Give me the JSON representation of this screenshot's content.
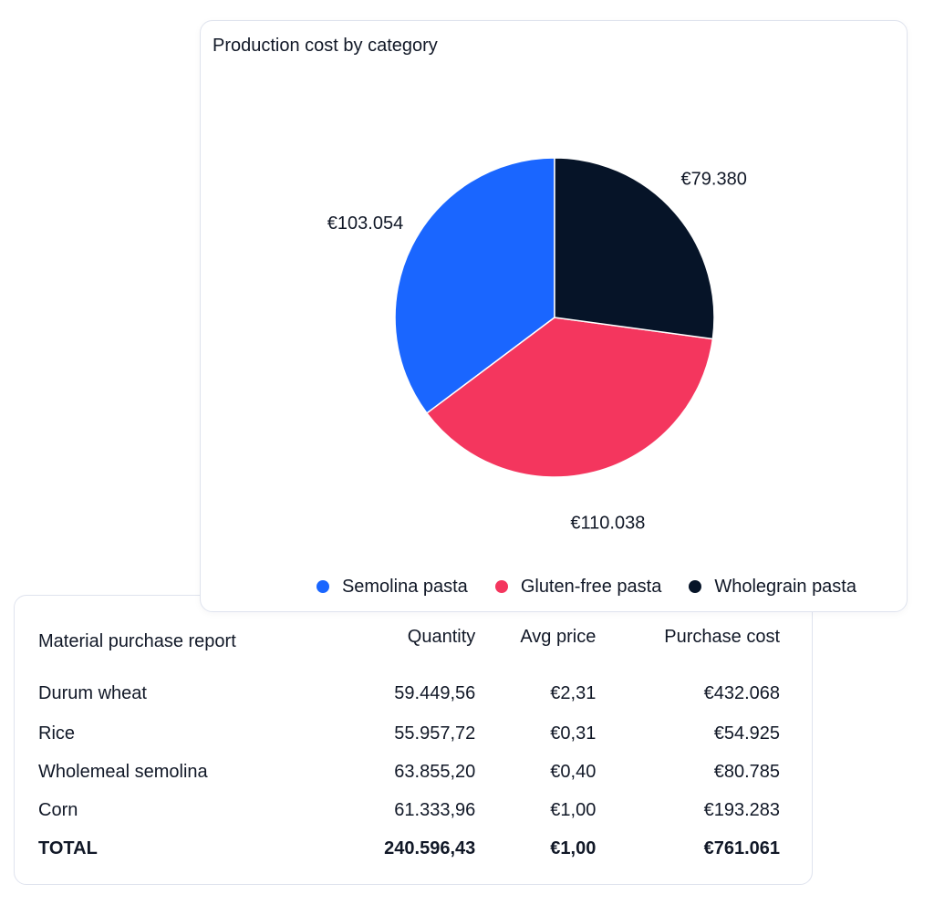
{
  "chart_data": {
    "type": "pie",
    "title": "Production cost by category",
    "categories": [
      "Semolina pasta",
      "Gluten-free pasta",
      "Wholegrain pasta"
    ],
    "values": [
      103054,
      110038,
      79380
    ],
    "value_labels": [
      "€103.054",
      "€110.038",
      "€79.380"
    ],
    "colors": [
      "#1a66ff",
      "#f4365e",
      "#061428"
    ],
    "legend_position": "bottom-right"
  },
  "report": {
    "headers": [
      "Material purchase report",
      "Quantity",
      "Avg price",
      "Purchase cost"
    ],
    "rows": [
      [
        "Durum wheat",
        "59.449,56",
        "€2,31",
        "€432.068"
      ],
      [
        "Rice",
        "55.957,72",
        "€0,31",
        "€54.925"
      ],
      [
        "Wholemeal semolina",
        "63.855,20",
        "€0,40",
        "€80.785"
      ],
      [
        "Corn",
        "61.333,96",
        "€1,00",
        "€193.283"
      ]
    ],
    "total": [
      "TOTAL",
      "240.596,43",
      "€1,00",
      "€761.061"
    ]
  }
}
